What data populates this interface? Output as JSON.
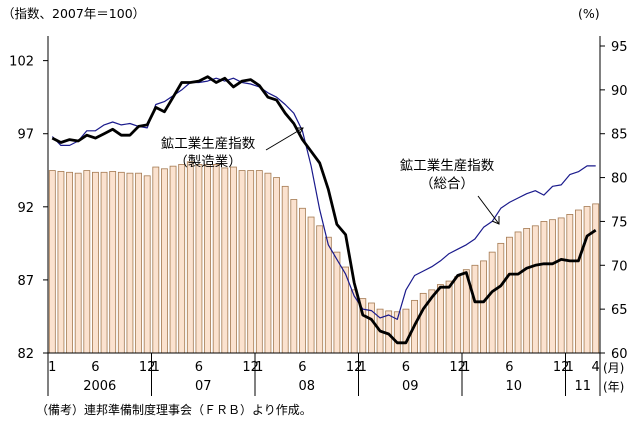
{
  "chart_data": {
    "type": "bar+line",
    "left_axis_label": "（指数、2007年＝100）",
    "right_axis_label": "(%)",
    "left_ylim": [
      82,
      103
    ],
    "left_ticks": [
      82,
      87,
      92,
      97,
      102
    ],
    "right_ylim": [
      60,
      95
    ],
    "right_ticks": [
      60,
      65,
      70,
      75,
      80,
      85,
      90,
      95
    ],
    "month_unit_label": "(月)",
    "year_unit_label": "(年)",
    "month_ticks": [
      {
        "i": 0,
        "label": "1"
      },
      {
        "i": 5,
        "label": "6"
      },
      {
        "i": 11,
        "label": "12"
      },
      {
        "i": 12,
        "label": "1"
      },
      {
        "i": 17,
        "label": "6"
      },
      {
        "i": 23,
        "label": "12"
      },
      {
        "i": 24,
        "label": "1"
      },
      {
        "i": 29,
        "label": "6"
      },
      {
        "i": 35,
        "label": "12"
      },
      {
        "i": 36,
        "label": "1"
      },
      {
        "i": 41,
        "label": "6"
      },
      {
        "i": 47,
        "label": "12"
      },
      {
        "i": 48,
        "label": "1"
      },
      {
        "i": 53,
        "label": "6"
      },
      {
        "i": 59,
        "label": "12"
      },
      {
        "i": 60,
        "label": "1"
      },
      {
        "i": 63,
        "label": "4"
      }
    ],
    "years": [
      {
        "start": 0,
        "end": 12,
        "label": "2006"
      },
      {
        "start": 12,
        "end": 24,
        "label": "07"
      },
      {
        "start": 24,
        "end": 36,
        "label": "08"
      },
      {
        "start": 36,
        "end": 48,
        "label": "09"
      },
      {
        "start": 48,
        "end": 60,
        "label": "10"
      },
      {
        "start": 60,
        "end": 64,
        "label": "11"
      }
    ],
    "series": [
      {
        "kind": "bar",
        "axis": "right",
        "values": [
          80.8,
          80.7,
          80.6,
          80.5,
          80.8,
          80.6,
          80.6,
          80.7,
          80.6,
          80.5,
          80.5,
          80.2,
          81.2,
          81.0,
          81.3,
          81.5,
          81.8,
          81.5,
          81.5,
          81.5,
          81.1,
          81.2,
          80.8,
          80.8,
          80.8,
          80.5,
          80.0,
          79.0,
          77.5,
          76.5,
          75.5,
          74.5,
          73.2,
          71.5,
          69.8,
          67.2,
          66.2,
          65.7,
          65.0,
          64.8,
          64.7,
          65.0,
          66.0,
          66.8,
          67.2,
          67.8,
          68.2,
          68.7,
          69.5,
          70.0,
          70.5,
          71.5,
          72.5,
          73.2,
          73.8,
          74.2,
          74.5,
          75.0,
          75.2,
          75.4,
          75.8,
          76.3,
          76.7,
          77.0
        ],
        "color": "#a47a52"
      },
      {
        "kind": "line",
        "axis": "left",
        "name": "鉱工業生産指数（総合）",
        "values": [
          96.8,
          96.2,
          96.2,
          96.5,
          97.2,
          97.2,
          97.6,
          97.8,
          97.6,
          97.7,
          97.5,
          97.4,
          99.0,
          99.2,
          99.6,
          100.0,
          100.5,
          100.5,
          100.6,
          100.8,
          100.6,
          100.8,
          100.5,
          100.4,
          100.2,
          99.8,
          99.5,
          99.0,
          98.4,
          97.2,
          94.8,
          91.8,
          89.4,
          88.4,
          87.4,
          85.9,
          85.0,
          84.9,
          84.4,
          84.6,
          84.3,
          86.3,
          87.3,
          87.6,
          87.9,
          88.3,
          88.8,
          89.1,
          89.4,
          89.8,
          90.6,
          91.0,
          91.9,
          92.3,
          92.6,
          92.9,
          93.1,
          92.8,
          93.4,
          93.5,
          94.2,
          94.4,
          94.8,
          94.8
        ],
        "color": "#1a1a8c"
      },
      {
        "kind": "line",
        "axis": "left",
        "name": "鉱工業生産指数（製造業）",
        "values": [
          96.7,
          96.4,
          96.6,
          96.5,
          96.9,
          96.7,
          97.0,
          97.3,
          96.9,
          96.9,
          97.5,
          97.6,
          98.8,
          98.5,
          99.5,
          100.5,
          100.5,
          100.6,
          100.9,
          100.5,
          100.8,
          100.2,
          100.6,
          100.7,
          100.3,
          99.5,
          99.3,
          98.4,
          97.7,
          96.6,
          95.8,
          95.0,
          93.2,
          90.8,
          90.1,
          86.8,
          84.6,
          84.3,
          83.5,
          83.3,
          82.7,
          82.7,
          83.9,
          85.0,
          85.8,
          86.5,
          86.5,
          87.3,
          87.5,
          85.5,
          85.5,
          86.2,
          86.6,
          87.4,
          87.4,
          87.8,
          88.0,
          88.1,
          88.1,
          88.4,
          88.3,
          88.3,
          90.0,
          90.4
        ],
        "color": "#000000"
      }
    ],
    "annotations": [
      {
        "line1": "鉱工業生産指数",
        "line2": "（製造業）"
      },
      {
        "line1": "鉱工業生産指数",
        "line2": "（総合）"
      }
    ]
  },
  "note": "（備考）連邦準備制度理事会（ＦＲＢ）より作成。"
}
